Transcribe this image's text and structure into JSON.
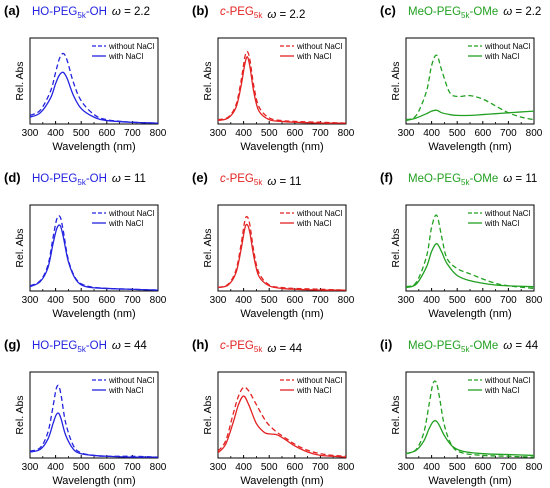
{
  "figure": {
    "x_label": "Wavelength (nm)",
    "y_label": "Rel. Abs",
    "legend_dashed": "without NaCl",
    "legend_solid": "with NaCl",
    "x_ticks": [
      "300",
      "400",
      "500",
      "600",
      "700",
      "800"
    ],
    "colors": {
      "blue": "#2323e0",
      "red": "#e32222",
      "green": "#22a022",
      "axis": "#000000"
    }
  },
  "chart_data": [
    {
      "type": "line",
      "panel": "(a)",
      "color": "#2323e0",
      "title_parts": [
        "HO-PEG",
        "5k",
        "-OH",
        "ω = 2.2"
      ],
      "xlim": [
        300,
        800
      ],
      "ylim": [
        0,
        1
      ],
      "x": [
        300,
        340,
        380,
        400,
        415,
        430,
        445,
        470,
        500,
        550,
        600,
        700,
        800
      ],
      "series": [
        {
          "name": "without NaCl",
          "dash": true,
          "values": [
            0.1,
            0.16,
            0.38,
            0.6,
            0.76,
            0.82,
            0.74,
            0.48,
            0.27,
            0.11,
            0.05,
            0.02,
            0.01
          ]
        },
        {
          "name": "with NaCl",
          "dash": false,
          "values": [
            0.08,
            0.13,
            0.3,
            0.47,
            0.57,
            0.6,
            0.53,
            0.33,
            0.18,
            0.08,
            0.04,
            0.02,
            0.01
          ]
        }
      ]
    },
    {
      "type": "line",
      "panel": "(b)",
      "color": "#e32222",
      "title_parts": [
        "c-PEG",
        "5k",
        "",
        "ω = 2.2"
      ],
      "xlim": [
        300,
        800
      ],
      "ylim": [
        0,
        1
      ],
      "x": [
        300,
        340,
        370,
        390,
        405,
        415,
        425,
        440,
        460,
        500,
        550,
        600,
        700,
        800
      ],
      "series": [
        {
          "name": "without NaCl",
          "dash": true,
          "values": [
            0.05,
            0.08,
            0.22,
            0.5,
            0.78,
            0.84,
            0.74,
            0.44,
            0.2,
            0.07,
            0.04,
            0.03,
            0.02,
            0.01
          ]
        },
        {
          "name": "with NaCl",
          "dash": false,
          "values": [
            0.04,
            0.07,
            0.19,
            0.44,
            0.7,
            0.78,
            0.66,
            0.37,
            0.15,
            0.05,
            0.03,
            0.02,
            0.01,
            0.01
          ]
        }
      ]
    },
    {
      "type": "line",
      "panel": "(c)",
      "color": "#22a022",
      "title_parts": [
        "MeO-PEG",
        "5k",
        "-OMe",
        "ω = 2.2"
      ],
      "xlim": [
        300,
        800
      ],
      "ylim": [
        0,
        1
      ],
      "x": [
        300,
        340,
        380,
        400,
        420,
        440,
        470,
        500,
        550,
        600,
        650,
        700,
        750,
        800
      ],
      "series": [
        {
          "name": "without NaCl",
          "dash": true,
          "values": [
            0.05,
            0.1,
            0.38,
            0.68,
            0.8,
            0.62,
            0.37,
            0.32,
            0.33,
            0.29,
            0.21,
            0.13,
            0.08,
            0.05
          ]
        },
        {
          "name": "with NaCl",
          "dash": false,
          "values": [
            0.04,
            0.07,
            0.12,
            0.15,
            0.16,
            0.13,
            0.11,
            0.1,
            0.1,
            0.11,
            0.12,
            0.13,
            0.14,
            0.15
          ]
        }
      ]
    },
    {
      "type": "line",
      "panel": "(d)",
      "color": "#2323e0",
      "title_parts": [
        "HO-PEG",
        "5k",
        "-OH",
        "ω = 11"
      ],
      "xlim": [
        300,
        800
      ],
      "ylim": [
        0,
        1
      ],
      "x": [
        300,
        340,
        370,
        390,
        405,
        418,
        430,
        450,
        480,
        520,
        600,
        700,
        800
      ],
      "series": [
        {
          "name": "without NaCl",
          "dash": true,
          "values": [
            0.06,
            0.12,
            0.3,
            0.62,
            0.84,
            0.86,
            0.7,
            0.36,
            0.14,
            0.06,
            0.03,
            0.02,
            0.01
          ]
        },
        {
          "name": "with NaCl",
          "dash": false,
          "values": [
            0.05,
            0.11,
            0.27,
            0.55,
            0.73,
            0.76,
            0.63,
            0.34,
            0.13,
            0.05,
            0.03,
            0.02,
            0.01
          ]
        }
      ]
    },
    {
      "type": "line",
      "panel": "(e)",
      "color": "#e32222",
      "title_parts": [
        "c-PEG",
        "5k",
        "",
        "ω = 11"
      ],
      "xlim": [
        300,
        800
      ],
      "ylim": [
        0,
        1
      ],
      "x": [
        300,
        340,
        370,
        390,
        405,
        415,
        425,
        440,
        460,
        500,
        550,
        600,
        700,
        800
      ],
      "series": [
        {
          "name": "without NaCl",
          "dash": true,
          "values": [
            0.04,
            0.08,
            0.24,
            0.54,
            0.82,
            0.86,
            0.76,
            0.46,
            0.21,
            0.07,
            0.04,
            0.03,
            0.02,
            0.01
          ]
        },
        {
          "name": "with NaCl",
          "dash": false,
          "values": [
            0.04,
            0.07,
            0.21,
            0.48,
            0.73,
            0.77,
            0.67,
            0.4,
            0.17,
            0.06,
            0.03,
            0.02,
            0.01,
            0.01
          ]
        }
      ]
    },
    {
      "type": "line",
      "panel": "(f)",
      "color": "#22a022",
      "title_parts": [
        "MeO-PEG",
        "5k",
        "-OMe",
        "ω = 11"
      ],
      "xlim": [
        300,
        800
      ],
      "ylim": [
        0,
        1
      ],
      "x": [
        300,
        340,
        380,
        400,
        420,
        440,
        460,
        500,
        550,
        600,
        650,
        700,
        800
      ],
      "series": [
        {
          "name": "without NaCl",
          "dash": true,
          "values": [
            0.05,
            0.1,
            0.4,
            0.74,
            0.88,
            0.62,
            0.38,
            0.26,
            0.2,
            0.14,
            0.09,
            0.06,
            0.03
          ]
        },
        {
          "name": "with NaCl",
          "dash": false,
          "values": [
            0.04,
            0.08,
            0.28,
            0.46,
            0.55,
            0.45,
            0.32,
            0.18,
            0.12,
            0.09,
            0.07,
            0.06,
            0.05
          ]
        }
      ]
    },
    {
      "type": "line",
      "panel": "(g)",
      "color": "#2323e0",
      "title_parts": [
        "HO-PEG",
        "5k",
        "-OH",
        "ω = 44"
      ],
      "xlim": [
        300,
        800
      ],
      "ylim": [
        0,
        1
      ],
      "x": [
        300,
        340,
        370,
        390,
        402,
        412,
        422,
        440,
        470,
        500,
        550,
        600,
        700,
        800
      ],
      "series": [
        {
          "name": "without NaCl",
          "dash": true,
          "values": [
            0.08,
            0.12,
            0.3,
            0.6,
            0.8,
            0.84,
            0.72,
            0.4,
            0.14,
            0.06,
            0.03,
            0.02,
            0.02,
            0.01
          ]
        },
        {
          "name": "with NaCl",
          "dash": false,
          "values": [
            0.07,
            0.1,
            0.22,
            0.4,
            0.5,
            0.52,
            0.45,
            0.26,
            0.1,
            0.05,
            0.03,
            0.02,
            0.01,
            0.01
          ]
        }
      ]
    },
    {
      "type": "line",
      "panel": "(h)",
      "color": "#e32222",
      "title_parts": [
        "c-PEG",
        "5k",
        "",
        "ω = 44"
      ],
      "xlim": [
        300,
        800
      ],
      "ylim": [
        0,
        1
      ],
      "x": [
        300,
        330,
        360,
        380,
        400,
        420,
        450,
        480,
        500,
        530,
        560,
        600,
        650,
        700,
        750,
        800
      ],
      "series": [
        {
          "name": "without NaCl",
          "dash": true,
          "values": [
            0.08,
            0.2,
            0.52,
            0.72,
            0.82,
            0.78,
            0.62,
            0.46,
            0.38,
            0.3,
            0.24,
            0.16,
            0.09,
            0.05,
            0.03,
            0.02
          ]
        },
        {
          "name": "with NaCl",
          "dash": false,
          "values": [
            0.06,
            0.16,
            0.42,
            0.62,
            0.72,
            0.62,
            0.4,
            0.3,
            0.28,
            0.27,
            0.22,
            0.14,
            0.07,
            0.03,
            0.02,
            0.01
          ]
        }
      ]
    },
    {
      "type": "line",
      "panel": "(i)",
      "color": "#22a022",
      "title_parts": [
        "MeO-PEG",
        "5k",
        "-OMe",
        "ω = 44"
      ],
      "xlim": [
        300,
        800
      ],
      "ylim": [
        0,
        1
      ],
      "x": [
        300,
        340,
        370,
        390,
        405,
        418,
        430,
        450,
        480,
        520,
        600,
        700,
        800
      ],
      "series": [
        {
          "name": "without NaCl",
          "dash": true,
          "values": [
            0.05,
            0.1,
            0.3,
            0.62,
            0.86,
            0.88,
            0.72,
            0.38,
            0.14,
            0.06,
            0.03,
            0.02,
            0.01
          ]
        },
        {
          "name": "with NaCl",
          "dash": false,
          "values": [
            0.05,
            0.09,
            0.2,
            0.34,
            0.42,
            0.43,
            0.38,
            0.26,
            0.14,
            0.08,
            0.05,
            0.04,
            0.03
          ]
        }
      ]
    }
  ]
}
